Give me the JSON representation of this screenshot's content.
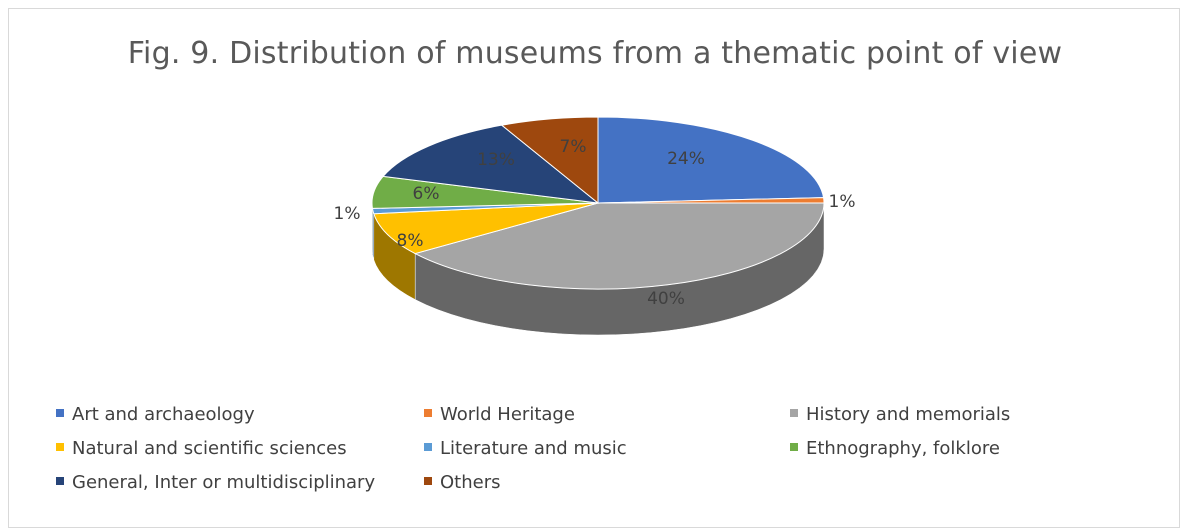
{
  "chart_data": {
    "type": "pie",
    "title": "Fig. 9. Distribution of museums from a thematic point of view",
    "three_d": true,
    "legend_position": "bottom",
    "slices": [
      {
        "label": "Art and archaeology",
        "value": 24,
        "display": "24%",
        "color": "#4472C4"
      },
      {
        "label": "World Heritage",
        "value": 1,
        "display": "1%",
        "color": "#ED7D31"
      },
      {
        "label": "History and memorials",
        "value": 40,
        "display": "40%",
        "color": "#A5A5A5"
      },
      {
        "label": "Natural and scientific sciences",
        "value": 8,
        "display": "8%",
        "color": "#FFC000"
      },
      {
        "label": "Literature and music",
        "value": 1,
        "display": "1%",
        "color": "#5B9BD5"
      },
      {
        "label": "Ethnography, folklore",
        "value": 6,
        "display": "6%",
        "color": "#70AD47"
      },
      {
        "label": "General, Inter or multidisciplinary",
        "value": 13,
        "display": "13%",
        "color": "#264478"
      },
      {
        "label": "Others",
        "value": 7,
        "display": "7%",
        "color": "#9E480E"
      }
    ]
  }
}
